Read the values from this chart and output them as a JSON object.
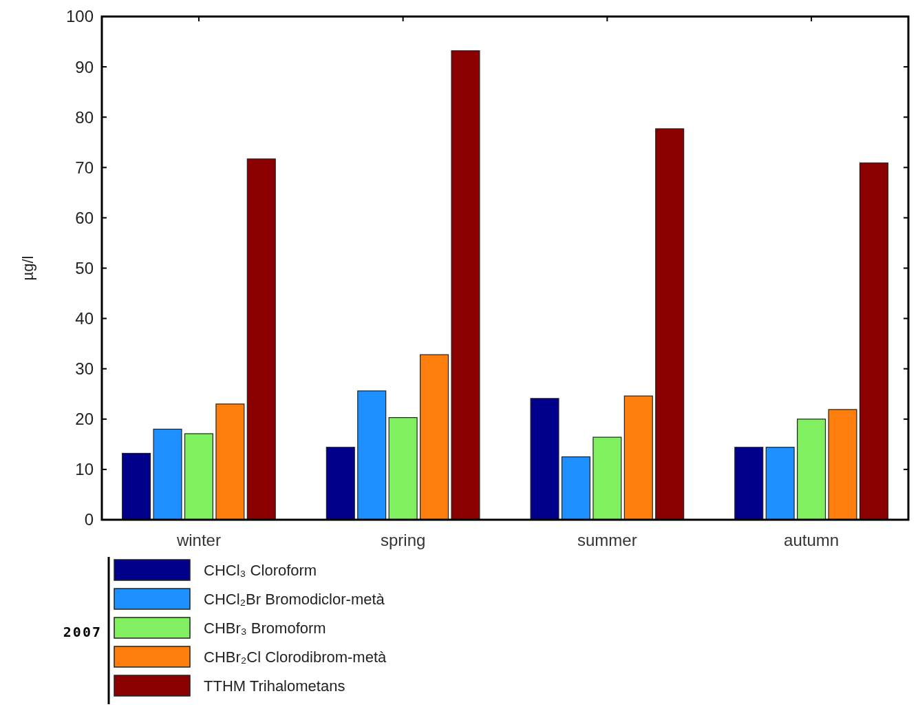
{
  "chart_data": {
    "type": "bar",
    "ylabel": "µg/l",
    "legend_title": "2007",
    "legend": "bottom left",
    "categories": [
      "winter",
      "spring",
      "summer",
      "autumn"
    ],
    "series": [
      {
        "name": "CHCl₃ Cloroform",
        "color": "#00008b",
        "values": [
          13.2,
          14.4,
          24.1,
          14.4
        ]
      },
      {
        "name": "CHCl₂Br Bromodiclor-metà",
        "color": "#1e90ff",
        "values": [
          18,
          25.6,
          12.5,
          14.4
        ]
      },
      {
        "name": "CHBr₃ Bromoform",
        "color": "#80f060",
        "values": [
          17.1,
          20.3,
          16.4,
          20
        ]
      },
      {
        "name": "CHBr₂Cl Clorodibrom-metà",
        "color": "#ff7f0e",
        "values": [
          23,
          32.8,
          24.6,
          21.9
        ]
      },
      {
        "name": "TTHM Trihalometans",
        "color": "#8b0000",
        "values": [
          71.7,
          93.2,
          77.7,
          70.9
        ]
      }
    ],
    "ylim": [
      0,
      100
    ],
    "yticks": [
      0,
      10,
      20,
      30,
      40,
      50,
      60,
      70,
      80,
      90,
      100
    ]
  }
}
